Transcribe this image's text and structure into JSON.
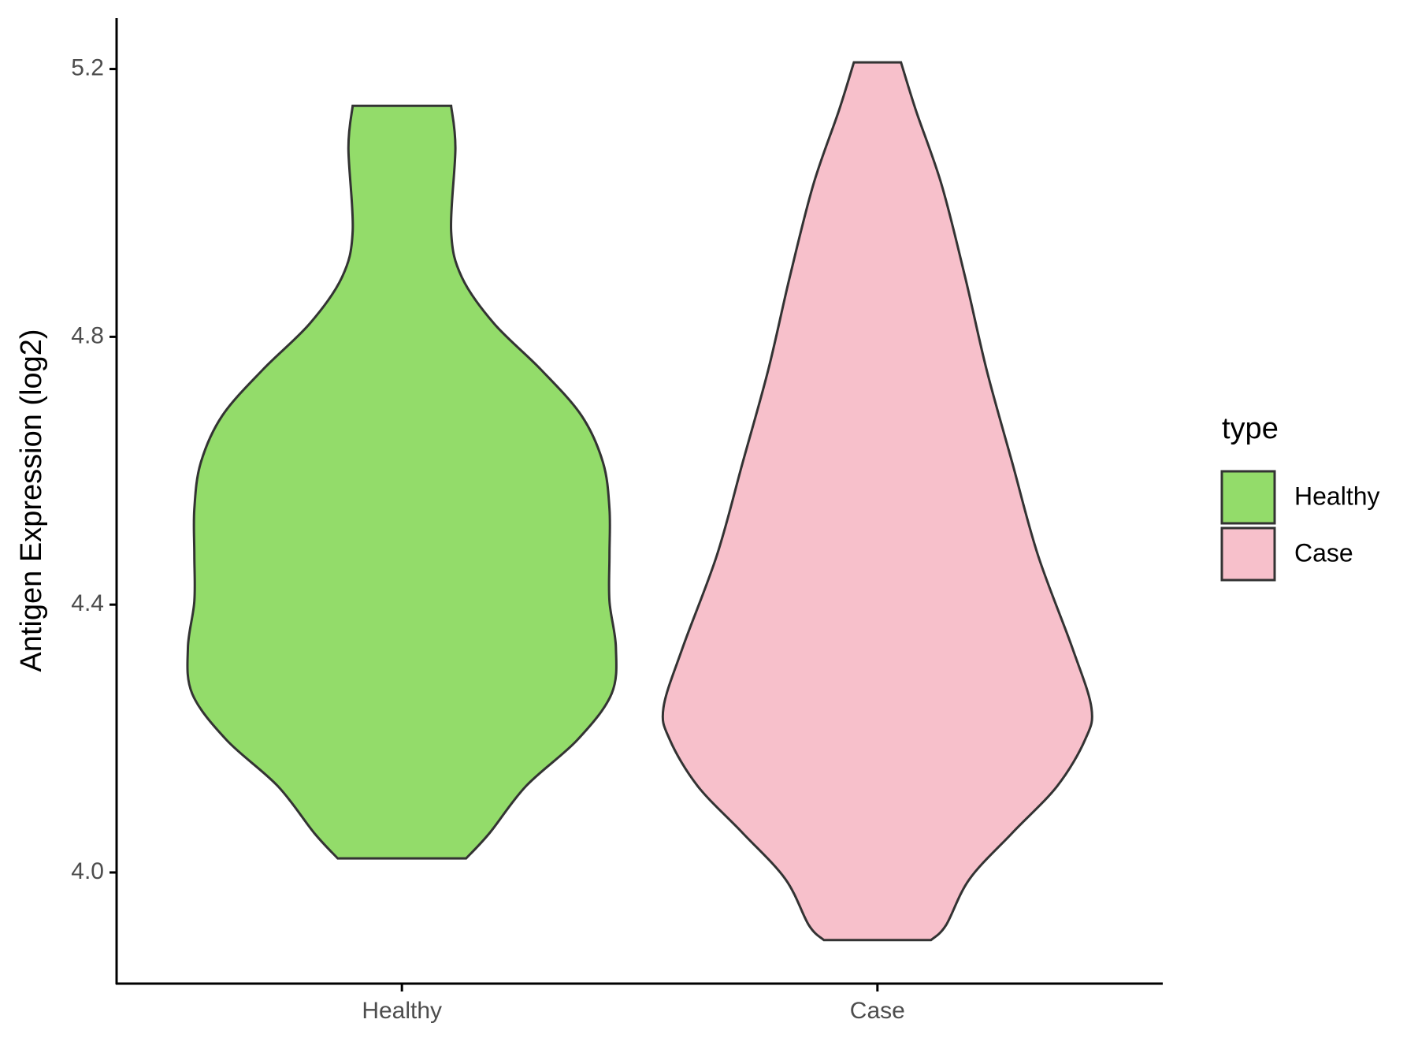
{
  "chart_data": {
    "type": "violin",
    "y_label": "Antigen Expression (log2)",
    "categories": [
      "Healthy",
      "Case"
    ],
    "series": [
      {
        "name": "Healthy",
        "color": "#93dc6a",
        "y": [
          5.145,
          5.082,
          4.958,
          4.889,
          4.82,
          4.751,
          4.682,
          4.612,
          4.543,
          4.474,
          4.405,
          4.336,
          4.267,
          4.198,
          4.129,
          4.059,
          4.021
        ],
        "density": [
          0.23,
          0.25,
          0.23,
          0.28,
          0.43,
          0.65,
          0.84,
          0.94,
          0.97,
          0.97,
          0.97,
          1.0,
          0.98,
          0.82,
          0.58,
          0.41,
          0.3
        ]
      },
      {
        "name": "Case",
        "color": "#f7c0cb",
        "y": [
          5.21,
          5.138,
          5.027,
          4.889,
          4.751,
          4.612,
          4.474,
          4.336,
          4.246,
          4.198,
          4.129,
          4.059,
          3.99,
          3.921,
          3.899
        ],
        "density": [
          0.11,
          0.18,
          0.3,
          0.41,
          0.51,
          0.63,
          0.75,
          0.91,
          1.0,
          0.97,
          0.84,
          0.63,
          0.43,
          0.32,
          0.25
        ]
      }
    ],
    "ylim": [
      3.834,
      5.276
    ],
    "yticks": [
      {
        "value": 4,
        "label": "4.0"
      },
      4.4,
      4.8,
      5.2
    ],
    "legend_title": "type",
    "legend_position": "right"
  }
}
